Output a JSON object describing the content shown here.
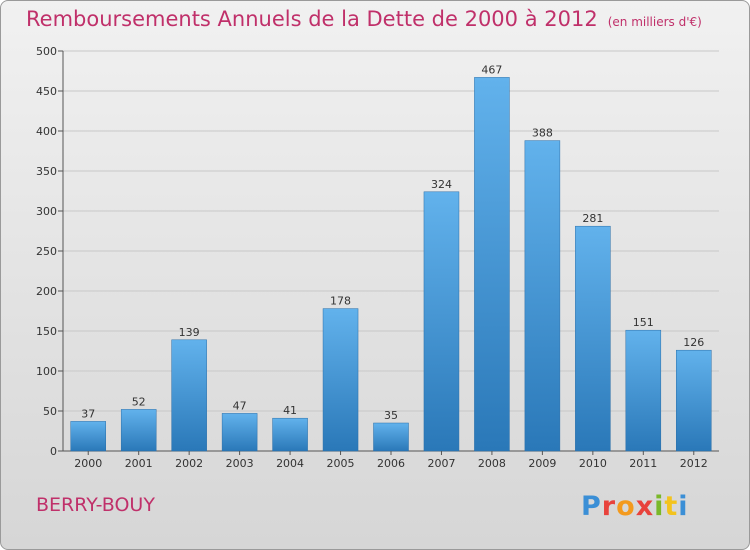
{
  "header": {
    "title": "Remboursements Annuels de la Dette de 2000 à 2012",
    "unit": "(en milliers d'€)"
  },
  "footer": {
    "commune": "BERRY-BOUY",
    "logo": "Proxiti",
    "logo_colors": [
      "#3b8fd6",
      "#e8423c",
      "#f39a1e",
      "#e8423c",
      "#7ab829",
      "#f3c31e",
      "#3b8fd6"
    ]
  },
  "colors": {
    "bar_light": "#62b2ec",
    "bar_dark": "#2a78b8",
    "accent": "#c0306a",
    "grid": "#c8c8c8"
  },
  "chart_data": {
    "type": "bar",
    "title": "Remboursements Annuels de la Dette de 2000 à 2012",
    "subtitle": "(en milliers d'€)",
    "categories": [
      "2000",
      "2001",
      "2002",
      "2003",
      "2004",
      "2005",
      "2006",
      "2007",
      "2008",
      "2009",
      "2010",
      "2011",
      "2012"
    ],
    "values": [
      37,
      52,
      139,
      47,
      41,
      178,
      35,
      324,
      467,
      388,
      281,
      151,
      126
    ],
    "ylim": [
      0,
      500
    ],
    "yticks": [
      0,
      50,
      100,
      150,
      200,
      250,
      300,
      350,
      400,
      450,
      500
    ],
    "grid": true,
    "data_labels": true
  }
}
